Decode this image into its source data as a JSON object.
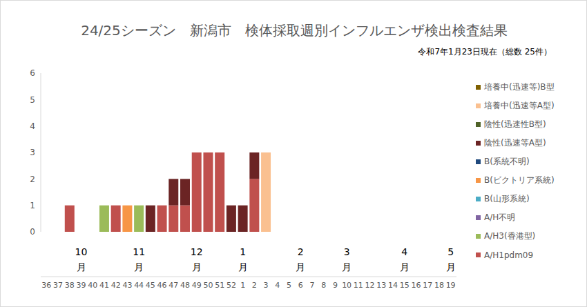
{
  "chart_data": {
    "type": "bar",
    "title": "24/25シーズン　新潟市　検体採取週別インフルエンザ検出検査結果",
    "subtitle": "令和7年1月23日現在（総数 25件）",
    "categories": [
      "36",
      "37",
      "38",
      "39",
      "40",
      "41",
      "42",
      "43",
      "44",
      "45",
      "46",
      "47",
      "48",
      "49",
      "50",
      "51",
      "52",
      "1",
      "2",
      "3",
      "4",
      "5",
      "6",
      "7",
      "8",
      "9",
      "10",
      "11",
      "12",
      "13",
      "14",
      "15",
      "16",
      "17",
      "18",
      "19"
    ],
    "month_labels": [
      null,
      null,
      null,
      "10月",
      null,
      null,
      null,
      null,
      "11月",
      null,
      null,
      null,
      null,
      "12月",
      null,
      null,
      null,
      "1月",
      null,
      null,
      null,
      null,
      "2月",
      null,
      null,
      null,
      "3月",
      null,
      null,
      null,
      null,
      "4月",
      null,
      null,
      null,
      "5月"
    ],
    "stacked": true,
    "grid": false,
    "legend": "right",
    "ylim": [
      0,
      6
    ],
    "yticks": [
      0,
      1,
      2,
      3,
      4,
      5,
      6
    ],
    "series": [
      {
        "name": "A/H1pdm09",
        "color": "#c0504d",
        "values": [
          0,
          0,
          1,
          0,
          0,
          0,
          1,
          0,
          0,
          0,
          1,
          1,
          1,
          3,
          3,
          3,
          0,
          0,
          2,
          0,
          0,
          0,
          0,
          0,
          0,
          0,
          0,
          0,
          0,
          0,
          0,
          0,
          0,
          0,
          0,
          0
        ]
      },
      {
        "name": "A/H3(香港型)",
        "color": "#9bbb59",
        "values": [
          0,
          0,
          0,
          0,
          0,
          1,
          0,
          0,
          1,
          0,
          0,
          0,
          0,
          0,
          0,
          0,
          0,
          0,
          0,
          0,
          0,
          0,
          0,
          0,
          0,
          0,
          0,
          0,
          0,
          0,
          0,
          0,
          0,
          0,
          0,
          0
        ]
      },
      {
        "name": "A/H不明",
        "color": "#8064a2",
        "values": [
          0,
          0,
          0,
          0,
          0,
          0,
          0,
          0,
          0,
          0,
          0,
          0,
          0,
          0,
          0,
          0,
          0,
          0,
          0,
          0,
          0,
          0,
          0,
          0,
          0,
          0,
          0,
          0,
          0,
          0,
          0,
          0,
          0,
          0,
          0,
          0
        ]
      },
      {
        "name": "B(山形系統)",
        "color": "#4bacc6",
        "values": [
          0,
          0,
          0,
          0,
          0,
          0,
          0,
          0,
          0,
          0,
          0,
          0,
          0,
          0,
          0,
          0,
          0,
          0,
          0,
          0,
          0,
          0,
          0,
          0,
          0,
          0,
          0,
          0,
          0,
          0,
          0,
          0,
          0,
          0,
          0,
          0
        ]
      },
      {
        "name": "B(ビクトリア系統)",
        "color": "#f79646",
        "values": [
          0,
          0,
          0,
          0,
          0,
          0,
          0,
          1,
          0,
          0,
          0,
          0,
          0,
          0,
          0,
          0,
          0,
          0,
          0,
          0,
          0,
          0,
          0,
          0,
          0,
          0,
          0,
          0,
          0,
          0,
          0,
          0,
          0,
          0,
          0,
          0
        ]
      },
      {
        "name": "B(系統不明)",
        "color": "#1f497d",
        "values": [
          0,
          0,
          0,
          0,
          0,
          0,
          0,
          0,
          0,
          0,
          0,
          0,
          0,
          0,
          0,
          0,
          0,
          0,
          0,
          0,
          0,
          0,
          0,
          0,
          0,
          0,
          0,
          0,
          0,
          0,
          0,
          0,
          0,
          0,
          0,
          0
        ]
      },
      {
        "name": "陰性(迅速等A型)",
        "color": "#6b2424",
        "values": [
          0,
          0,
          0,
          0,
          0,
          0,
          0,
          0,
          0,
          1,
          0,
          1,
          1,
          0,
          0,
          0,
          1,
          1,
          1,
          0,
          0,
          0,
          0,
          0,
          0,
          0,
          0,
          0,
          0,
          0,
          0,
          0,
          0,
          0,
          0,
          0
        ]
      },
      {
        "name": "陰性(迅速性B型)",
        "color": "#4f6228",
        "values": [
          0,
          0,
          0,
          0,
          0,
          0,
          0,
          0,
          0,
          0,
          0,
          0,
          0,
          0,
          0,
          0,
          0,
          0,
          0,
          0,
          0,
          0,
          0,
          0,
          0,
          0,
          0,
          0,
          0,
          0,
          0,
          0,
          0,
          0,
          0,
          0
        ]
      },
      {
        "name": "培養中(迅速等A型)",
        "color": "#fac090",
        "values": [
          0,
          0,
          0,
          0,
          0,
          0,
          0,
          0,
          0,
          0,
          0,
          0,
          0,
          0,
          0,
          0,
          0,
          0,
          0,
          3,
          0,
          0,
          0,
          0,
          0,
          0,
          0,
          0,
          0,
          0,
          0,
          0,
          0,
          0,
          0,
          0
        ]
      },
      {
        "name": "培養中(迅速等)B型",
        "color": "#7f6000",
        "values": [
          0,
          0,
          0,
          0,
          0,
          0,
          0,
          0,
          0,
          0,
          0,
          0,
          0,
          0,
          0,
          0,
          0,
          0,
          0,
          0,
          0,
          0,
          0,
          0,
          0,
          0,
          0,
          0,
          0,
          0,
          0,
          0,
          0,
          0,
          0,
          0
        ]
      }
    ]
  }
}
